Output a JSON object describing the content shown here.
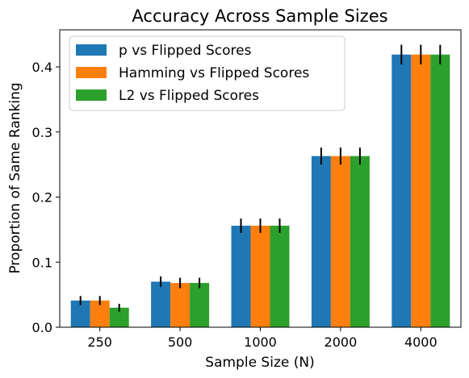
{
  "chart_data": {
    "type": "bar",
    "title": "Accuracy Across Sample Sizes",
    "xlabel": "Sample Size (N)",
    "ylabel": "Proportion of Same Ranking",
    "categories": [
      "250",
      "500",
      "1000",
      "2000",
      "4000"
    ],
    "ylim": [
      0,
      0.457
    ],
    "yticks": [
      0.0,
      0.1,
      0.2,
      0.3,
      0.4
    ],
    "ytick_labels": [
      "0.0",
      "0.1",
      "0.2",
      "0.3",
      "0.4"
    ],
    "grid": false,
    "legend_position": "top-left",
    "series": [
      {
        "name": "p vs Flipped Scores",
        "color": "#1f77b4",
        "values": [
          0.041,
          0.07,
          0.156,
          0.263,
          0.419
        ],
        "errors": [
          0.007,
          0.008,
          0.011,
          0.013,
          0.015
        ]
      },
      {
        "name": "Hamming vs Flipped Scores",
        "color": "#ff7f0e",
        "values": [
          0.041,
          0.068,
          0.156,
          0.263,
          0.419
        ],
        "errors": [
          0.007,
          0.008,
          0.011,
          0.013,
          0.015
        ]
      },
      {
        "name": "L2 vs Flipped Scores",
        "color": "#2ca02c",
        "values": [
          0.03,
          0.068,
          0.156,
          0.263,
          0.419
        ],
        "errors": [
          0.006,
          0.008,
          0.011,
          0.013,
          0.015
        ]
      }
    ]
  }
}
